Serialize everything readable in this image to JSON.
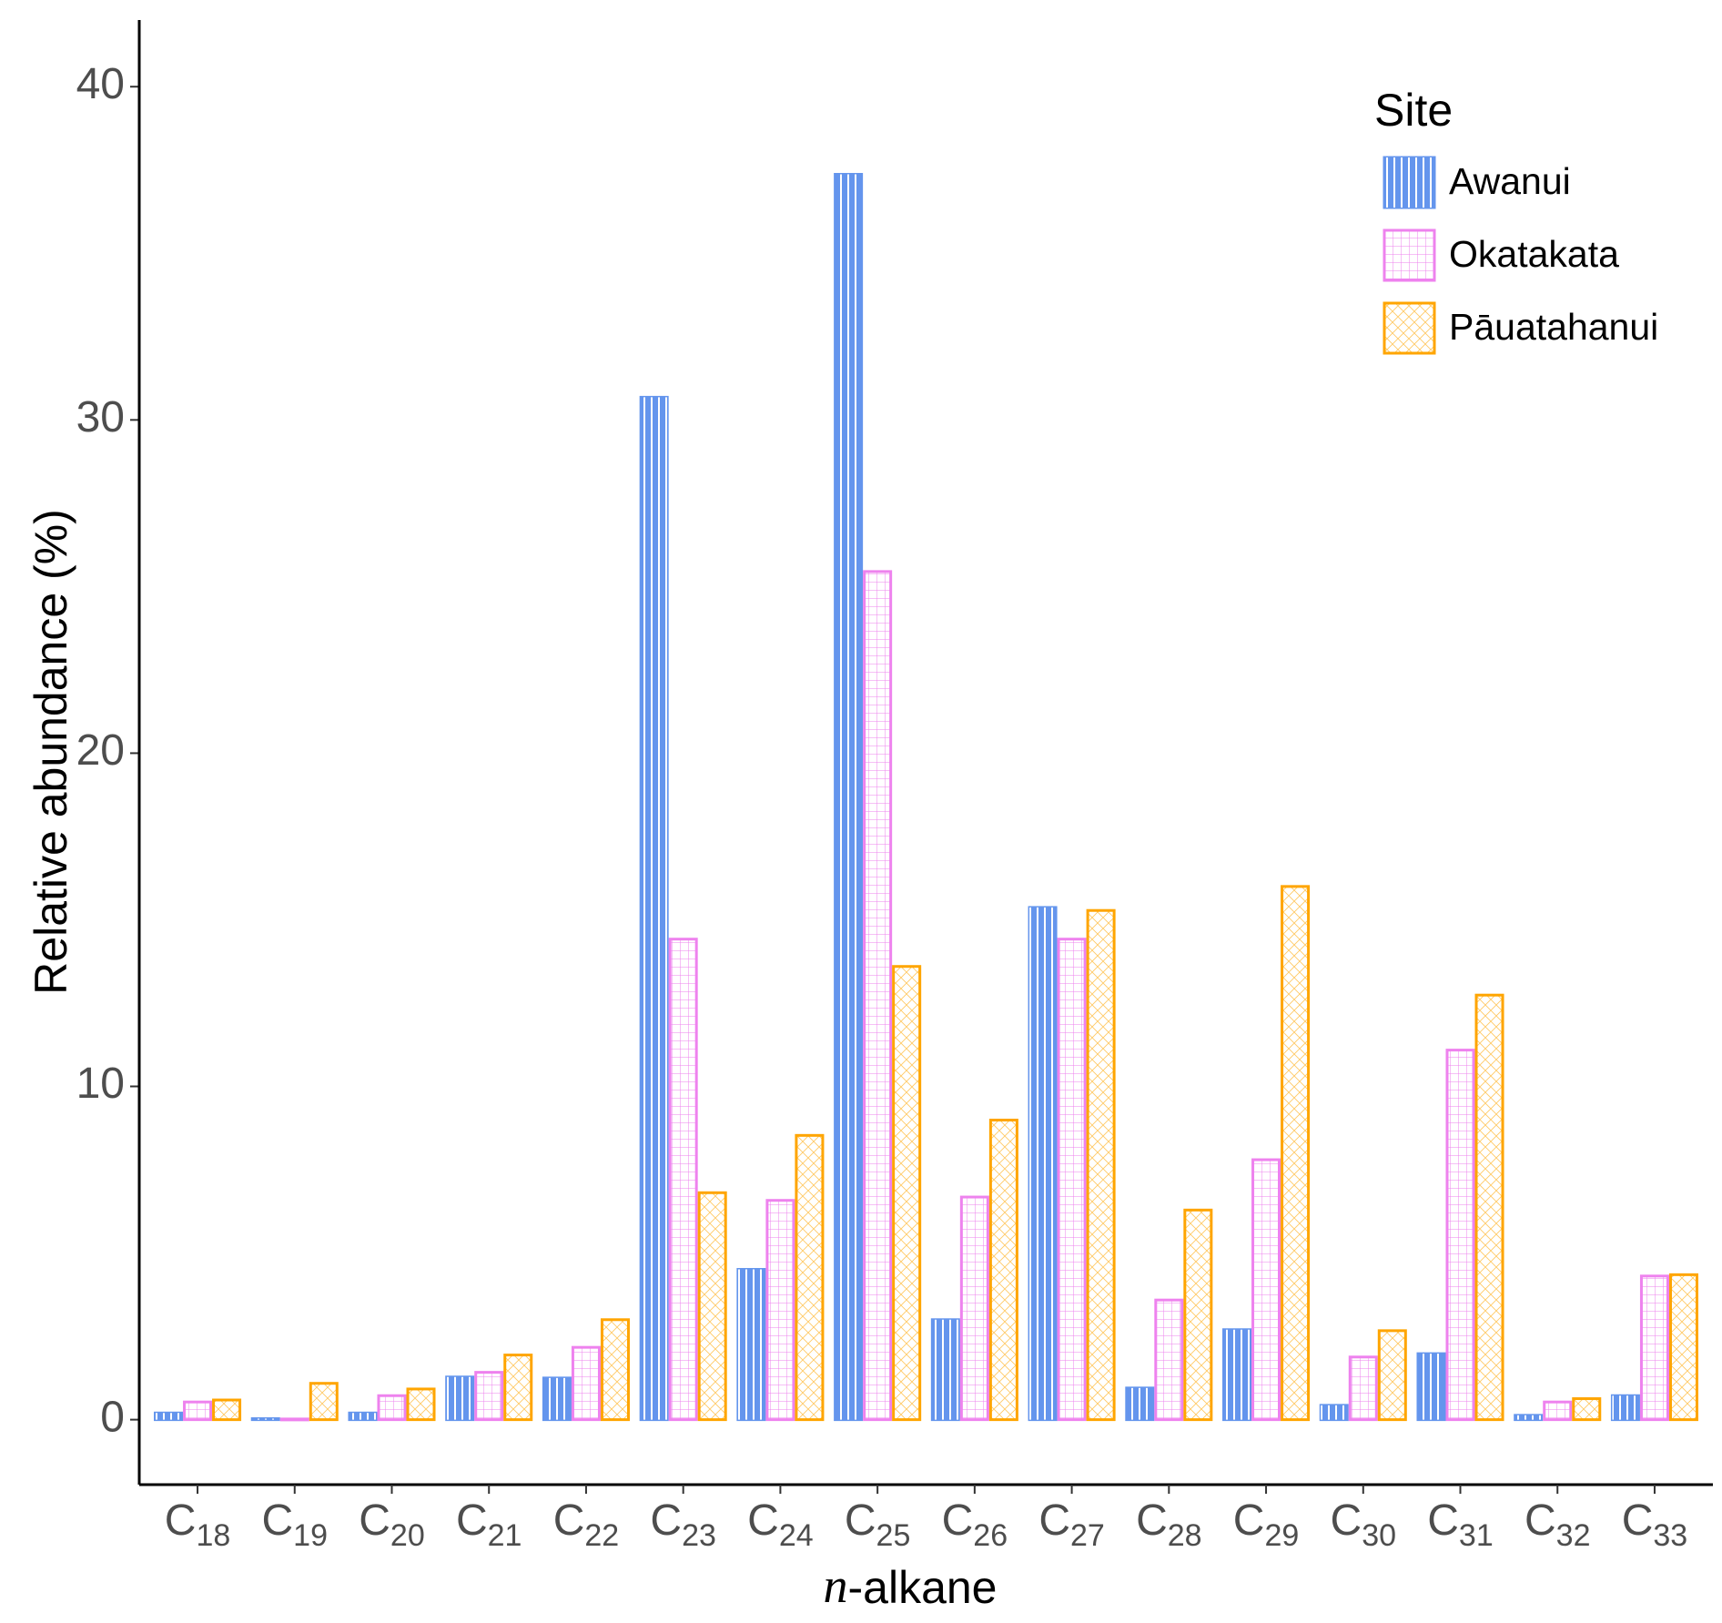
{
  "chart_data": {
    "type": "bar",
    "xlabel": "n-alkane",
    "ylabel": "Relative abundance (%)",
    "categories": [
      "C18",
      "C19",
      "C20",
      "C21",
      "C22",
      "C23",
      "C24",
      "C25",
      "C26",
      "C27",
      "C28",
      "C29",
      "C30",
      "C31",
      "C32",
      "C33"
    ],
    "series": [
      {
        "name": "Awanui",
        "color": "#6495ED",
        "values": [
          0.2,
          0.03,
          0.2,
          1.28,
          1.25,
          30.68,
          4.51,
          37.37,
          3.0,
          15.37,
          0.95,
          2.7,
          0.43,
          1.98,
          0.13,
          0.72
        ]
      },
      {
        "name": "Okatakata",
        "color": "#EE82EE",
        "values": [
          0.53,
          0.02,
          0.72,
          1.42,
          2.17,
          14.42,
          6.58,
          25.45,
          6.68,
          14.42,
          3.59,
          7.8,
          1.88,
          11.09,
          0.53,
          4.31
        ]
      },
      {
        "name": "Pāuatahanui",
        "color": "#FFA500",
        "values": [
          0.59,
          1.09,
          0.92,
          1.94,
          3.0,
          6.81,
          8.53,
          13.6,
          8.99,
          15.28,
          6.29,
          16.0,
          2.67,
          12.74,
          0.63,
          4.35
        ]
      }
    ],
    "legend_title": "Site",
    "legend_position": "top-right",
    "ylim": [
      -1.95,
      42
    ],
    "yticks": [
      0,
      10,
      20,
      30,
      40
    ],
    "grid": false
  }
}
